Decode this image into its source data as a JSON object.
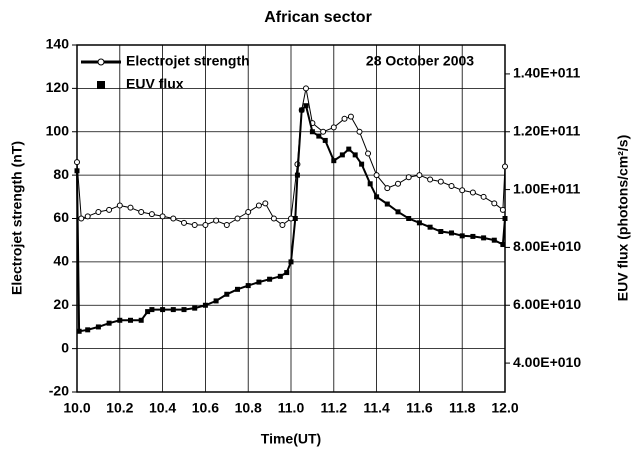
{
  "chart_data": {
    "type": "line",
    "title": "African sector",
    "annotation": "28 October 2003",
    "xlabel": "Time(UT)",
    "ylabel": "Electrojet strength (nT)",
    "y2label": "EUV flux (photons/cm²/s)",
    "xlim": [
      10.0,
      12.0
    ],
    "xticks": [
      {
        "value": 10.0,
        "label": "10.0"
      },
      10.2,
      10.4,
      10.6,
      10.8,
      {
        "value": 11.0,
        "label": "11.0"
      },
      11.2,
      11.4,
      11.6,
      11.8,
      {
        "value": 12.0,
        "label": "12.0"
      }
    ],
    "ylim": [
      -20,
      140
    ],
    "yticks": [
      -20,
      0,
      20,
      40,
      60,
      80,
      100,
      120,
      140
    ],
    "y2lim": [
      30000000000,
      150000000000
    ],
    "y2ticks": [
      {
        "value": 40000000000,
        "label": "4.00E+010"
      },
      {
        "value": 60000000000,
        "label": "6.00E+010"
      },
      {
        "value": 80000000000,
        "label": "8.00E+010"
      },
      {
        "value": 100000000000,
        "label": "1.00E+011"
      },
      {
        "value": 120000000000,
        "label": "1.20E+011"
      },
      {
        "value": 140000000000,
        "label": "1.40E+011"
      }
    ],
    "grid": true,
    "legend": "upper left",
    "series": [
      {
        "name": "Electrojet strength",
        "color": "#000000",
        "marker": "open-circle",
        "x": [
          10.0,
          10.02,
          10.05,
          10.1,
          10.15,
          10.2,
          10.25,
          10.3,
          10.35,
          10.4,
          10.45,
          10.5,
          10.55,
          10.6,
          10.65,
          10.7,
          10.75,
          10.8,
          10.85,
          10.88,
          10.92,
          10.96,
          11.0,
          11.03,
          11.05,
          11.07,
          11.1,
          11.15,
          11.2,
          11.25,
          11.28,
          11.32,
          11.36,
          11.4,
          11.45,
          11.5,
          11.55,
          11.6,
          11.65,
          11.7,
          11.75,
          11.8,
          11.85,
          11.9,
          11.95,
          11.99,
          12.0
        ],
        "values": [
          86,
          60,
          61,
          63,
          64,
          66,
          65,
          63,
          62,
          61,
          60,
          58,
          57,
          57,
          59,
          57,
          60,
          63,
          66,
          67,
          60,
          57,
          60,
          85,
          110,
          120,
          104,
          100,
          102,
          106,
          107,
          100,
          90,
          80,
          74,
          76,
          79,
          80,
          78,
          77,
          75,
          73,
          72,
          70,
          67,
          64,
          84
        ]
      },
      {
        "name": "EUV flux",
        "color": "#000000",
        "marker": "filled-square",
        "axis": "y2",
        "x": [
          10.0,
          10.01,
          10.05,
          10.1,
          10.15,
          10.2,
          10.25,
          10.3,
          10.33,
          10.35,
          10.4,
          10.45,
          10.5,
          10.55,
          10.6,
          10.65,
          10.7,
          10.75,
          10.8,
          10.85,
          10.9,
          10.95,
          10.98,
          11.0,
          11.02,
          11.03,
          11.05,
          11.07,
          11.1,
          11.13,
          11.16,
          11.2,
          11.24,
          11.27,
          11.3,
          11.33,
          11.37,
          11.4,
          11.45,
          11.5,
          11.55,
          11.6,
          11.65,
          11.7,
          11.75,
          11.8,
          11.85,
          11.9,
          11.95,
          11.99,
          12.0
        ],
        "values": [
          106500000000,
          51000000000,
          51500000000,
          52500000000,
          53800000000,
          54800000000,
          54800000000,
          54800000000,
          57800000000,
          58500000000,
          58500000000,
          58500000000,
          58500000000,
          59000000000,
          60000000000,
          61500000000,
          63800000000,
          65500000000,
          66800000000,
          68000000000,
          69000000000,
          70000000000,
          71300000000,
          75000000000,
          90000000000,
          105000000000,
          127500000000,
          129000000000,
          120000000000,
          118500000000,
          117000000000,
          110000000000,
          112000000000,
          114000000000,
          112000000000,
          108800000000,
          102000000000,
          97500000000,
          95000000000,
          92300000000,
          90000000000,
          88500000000,
          87000000000,
          85500000000,
          85000000000,
          84000000000,
          83800000000,
          83300000000,
          82500000000,
          81000000000,
          90000000000
        ]
      }
    ]
  }
}
